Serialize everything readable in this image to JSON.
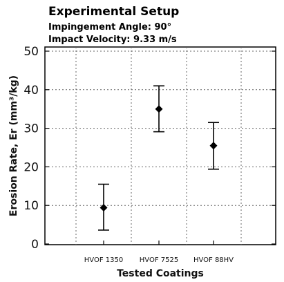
{
  "annotation": {
    "title": "Experimental Setup",
    "line1": "Impingement Angle: 90°",
    "line2": "Impact Velocity: 9.33 m/s"
  },
  "chart_data": {
    "type": "scatter",
    "categories": [
      "HVOF 1350",
      "HVOF 7525",
      "HVOF 88HV"
    ],
    "values": [
      9.4,
      35.0,
      25.5
    ],
    "error_lower": [
      3.6,
      29.1,
      19.4
    ],
    "error_upper": [
      15.5,
      41.0,
      31.5
    ],
    "xlabel": "Tested Coatings",
    "ylabel": "Erosion Rate, Er (mm³/kg)",
    "ylim": [
      0,
      50
    ],
    "yticks": [
      0,
      10,
      20,
      30,
      40,
      50
    ],
    "grid": true,
    "marker": "diamond",
    "color": "#000000"
  }
}
